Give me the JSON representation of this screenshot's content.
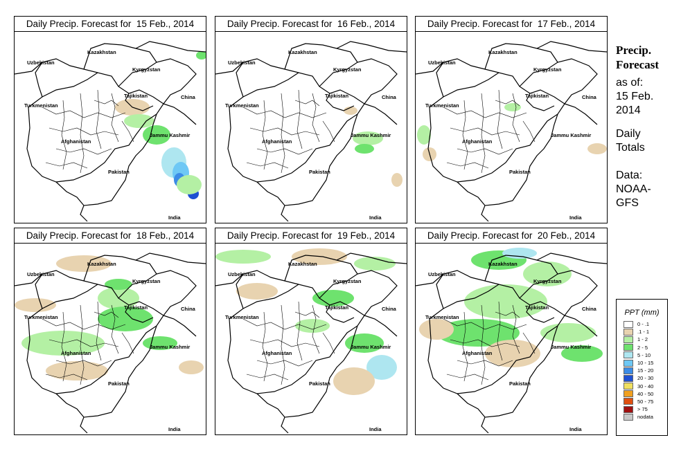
{
  "panels": [
    {
      "title": "Daily Precip. Forecast for  15 Feb., 2014"
    },
    {
      "title": "Daily Precip. Forecast for  16 Feb., 2014"
    },
    {
      "title": "Daily Precip. Forecast for  17 Feb., 2014"
    },
    {
      "title": "Daily Precip. Forecast for  18 Feb., 2014"
    },
    {
      "title": "Daily Precip. Forecast for  19 Feb., 2014"
    },
    {
      "title": "Daily Precip. Forecast for  20 Feb., 2014"
    }
  ],
  "map_labels": {
    "kazakhstan": "Kazakhstan",
    "uzbekistan": "Uzbekistan",
    "kyrgyzstan": "Kyrgyzstan",
    "tajikistan": "Tajikistan",
    "turkmenistan": "Turkmenistan",
    "china": "China",
    "jammu_kashmir": "Jammu Kashmir",
    "afghanistan": "Afghanistan",
    "pakistan": "Pakistan",
    "india": "India"
  },
  "side": {
    "heading_line1": "Precip.",
    "heading_line2": "Forecast",
    "asof_line1": "as of:",
    "asof_line2": "15 Feb.",
    "asof_line3": "2014",
    "totals_line1": "Daily",
    "totals_line2": "Totals",
    "data_line1": "Data:",
    "data_line2": "NOAA-",
    "data_line3": "GFS"
  },
  "legend": {
    "title": "PPT (mm)",
    "items": [
      {
        "label": "0 - .1",
        "color": "#ffffff"
      },
      {
        "label": ".1 - 1",
        "color": "#e8d3b0"
      },
      {
        "label": "1 - 2",
        "color": "#b4f0a4"
      },
      {
        "label": "2 - 5",
        "color": "#6ee26e"
      },
      {
        "label": "5 - 10",
        "color": "#aee6f0"
      },
      {
        "label": "10 - 15",
        "color": "#6ec8f5"
      },
      {
        "label": "15 - 20",
        "color": "#3c8ce6"
      },
      {
        "label": "20 - 30",
        "color": "#1e50d2"
      },
      {
        "label": "30 - 40",
        "color": "#f0e060"
      },
      {
        "label": "40 - 50",
        "color": "#f0a020"
      },
      {
        "label": "50 - 75",
        "color": "#e05010"
      },
      {
        "label": "> 75",
        "color": "#a01010"
      },
      {
        "label": "nodata",
        "color": "#c8c8c8"
      }
    ]
  }
}
